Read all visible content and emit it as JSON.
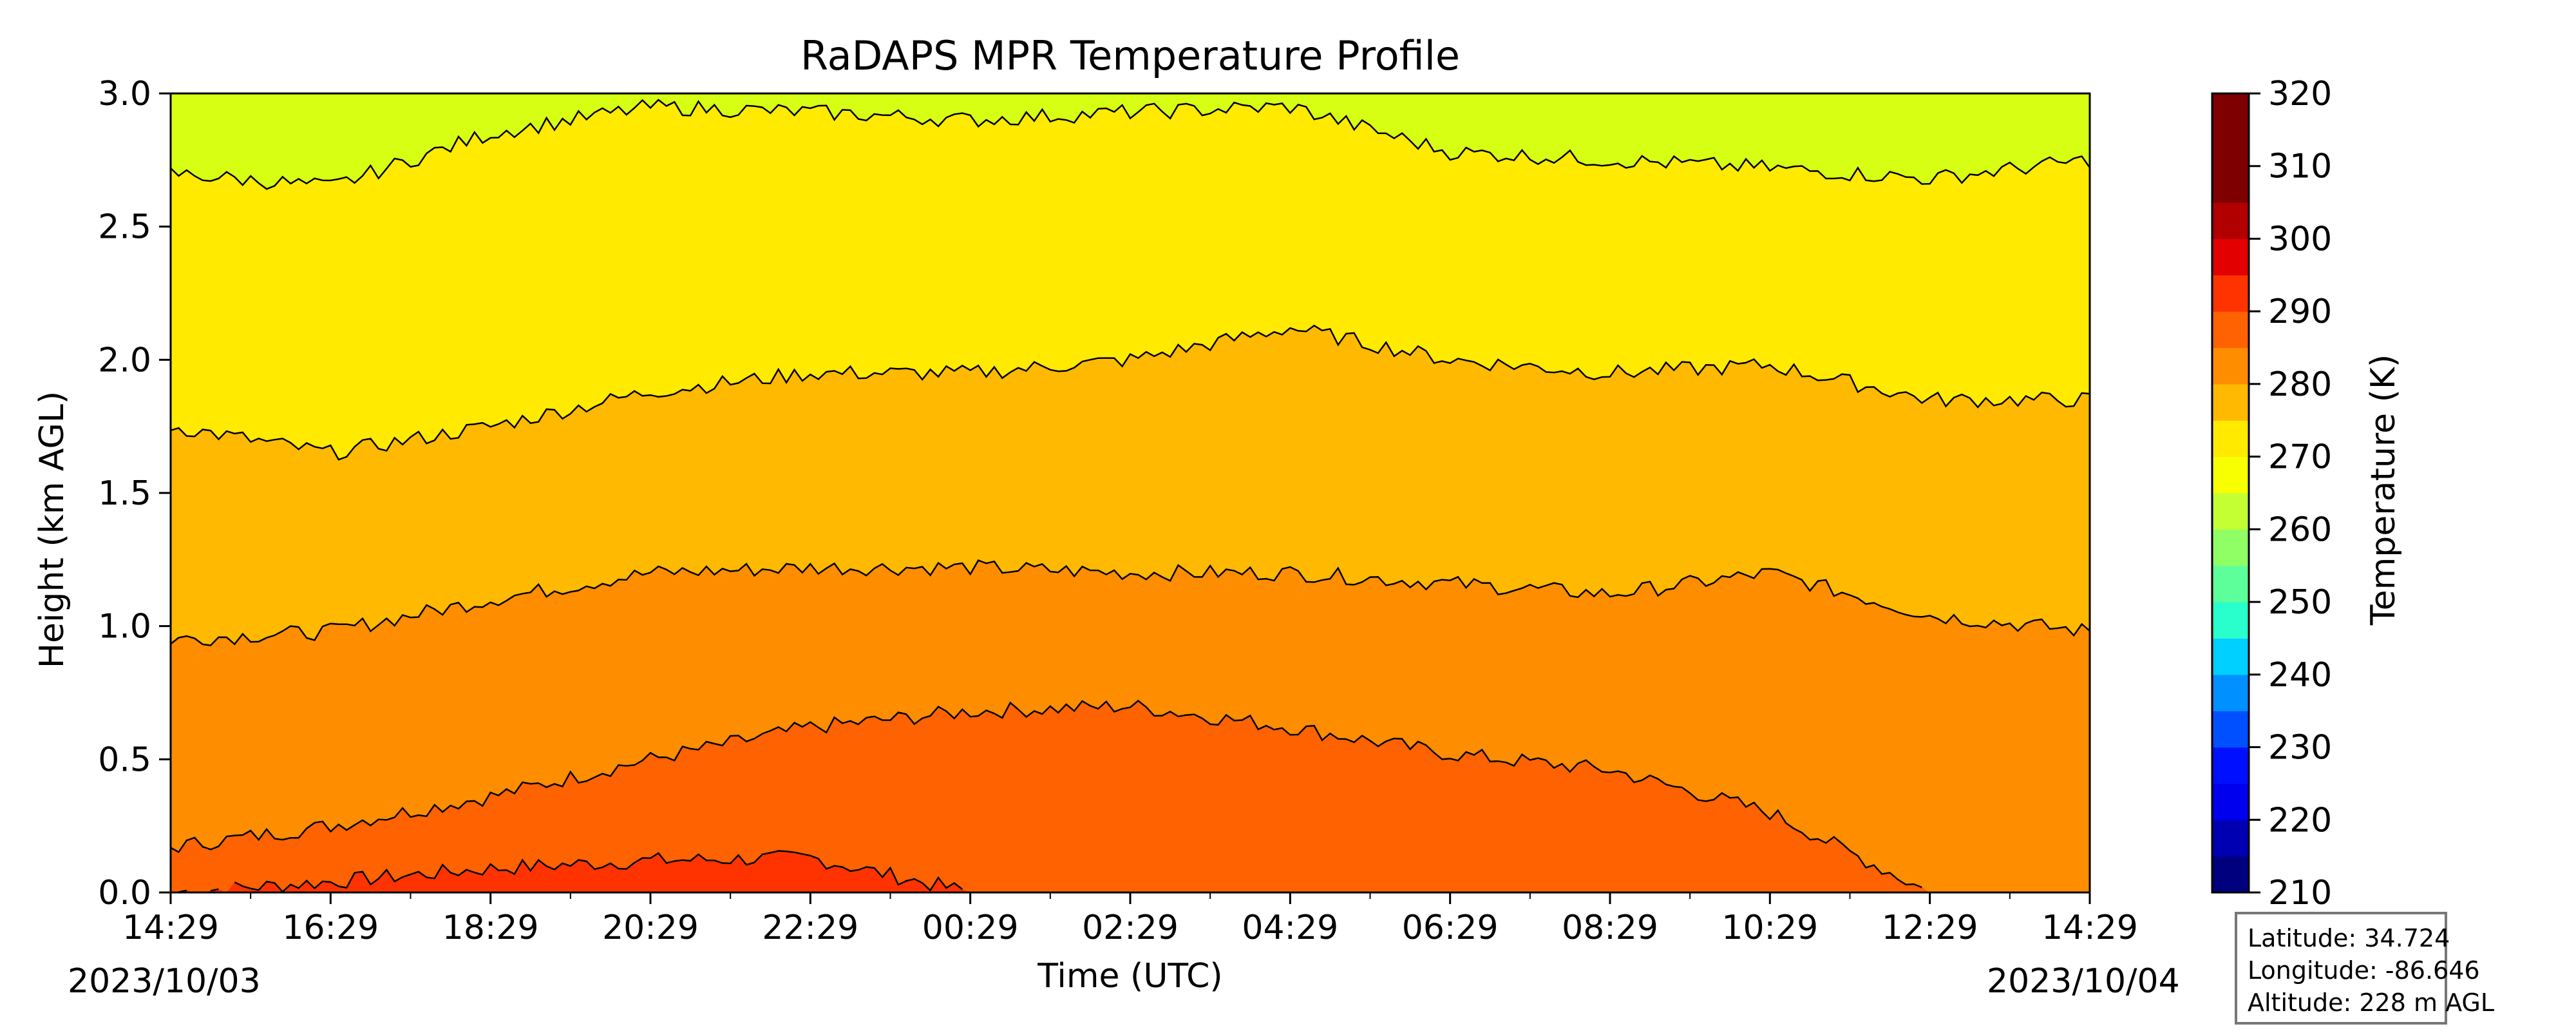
{
  "chart_data": {
    "type": "contour",
    "title": "RaDAPS MPR Temperature Profile",
    "xlabel": "Time (UTC)",
    "ylabel": "Height (km AGL)",
    "x_ticks": [
      "14:29",
      "16:29",
      "18:29",
      "20:29",
      "22:29",
      "00:29",
      "02:29",
      "04:29",
      "06:29",
      "08:29",
      "10:29",
      "12:29",
      "14:29"
    ],
    "x_range_hours": [
      0,
      24
    ],
    "start_date_label": "2023/10/03",
    "end_date_label": "2023/10/04",
    "y_ticks": [
      "0.0",
      "0.5",
      "1.0",
      "1.5",
      "2.0",
      "2.5",
      "3.0"
    ],
    "ylim": [
      0,
      3
    ],
    "colorbar": {
      "label": "Temperature (K)",
      "ticks": [
        "210",
        "220",
        "230",
        "240",
        "250",
        "260",
        "270",
        "280",
        "290",
        "300",
        "310",
        "320"
      ],
      "range": [
        210,
        320
      ],
      "step": 5,
      "colors": [
        "#00007f",
        "#0000b2",
        "#0000ef",
        "#0010ff",
        "#0050ff",
        "#0090ff",
        "#00d0ff",
        "#29ffcd",
        "#5dff9a",
        "#90ff66",
        "#c4ff33",
        "#f7ff00",
        "#ffea00",
        "#ffb900",
        "#ff8d00",
        "#ff6200",
        "#ff3300",
        "#e20000",
        "#b20000",
        "#7f0000",
        "#7f0000",
        "#7f0000"
      ]
    },
    "isotherms": [
      {
        "level": 300,
        "approx_height_km": [
          0.0,
          0.04,
          0.09,
          0.12,
          0.13,
          0.0,
          0.0,
          0.0,
          0.0,
          0.0,
          0.0,
          0.0,
          0.0
        ],
        "color": "#ff3300"
      },
      {
        "level": 295,
        "approx_height_km": [
          0.17,
          0.25,
          0.36,
          0.5,
          0.62,
          0.68,
          0.7,
          0.62,
          0.52,
          0.46,
          0.3,
          0.0,
          0.0
        ],
        "color": "#ff6200"
      },
      {
        "level": 290,
        "approx_height_km": [
          0.95,
          0.98,
          1.1,
          1.2,
          1.22,
          1.22,
          1.2,
          1.2,
          1.16,
          1.12,
          1.2,
          1.04,
          0.98
        ],
        "color": "#ff8d00"
      },
      {
        "level": 285,
        "approx_height_km": [
          1.75,
          1.65,
          1.75,
          1.88,
          1.95,
          1.95,
          2.0,
          2.12,
          2.0,
          1.95,
          1.98,
          1.85,
          1.85
        ],
        "color": "#ffb900"
      },
      {
        "level": 280,
        "approx_height_km": [
          2.7,
          2.65,
          2.85,
          2.95,
          2.93,
          2.9,
          2.93,
          2.95,
          2.78,
          2.75,
          2.72,
          2.68,
          2.75
        ],
        "color": "#ffea00"
      }
    ],
    "top_fill_color": "#d7ff14"
  },
  "location": {
    "latitude_label": "Latitude: 34.724",
    "longitude_label": "Longitude: -86.646",
    "altitude_label": "Altitude: 228 m AGL"
  }
}
